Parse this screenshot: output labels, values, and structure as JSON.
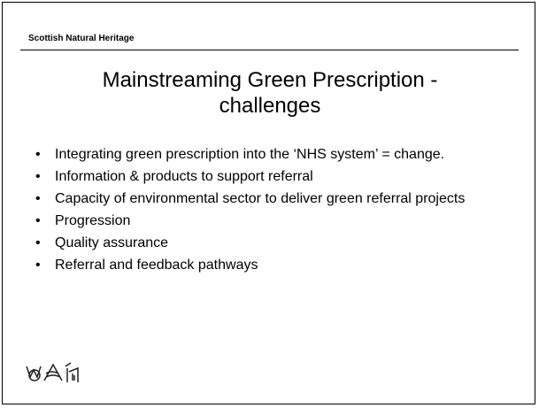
{
  "header": {
    "organization": "Scottish Natural Heritage"
  },
  "slide": {
    "title": "Mainstreaming Green Prescription - challenges",
    "bullets": [
      "Integrating green prescription into the ‘NHS system’ = change.",
      "Information & products to support referral",
      "Capacity of environmental sector to deliver green referral projects",
      "Progression",
      "Quality assurance",
      "Referral and feedback pathways"
    ]
  }
}
